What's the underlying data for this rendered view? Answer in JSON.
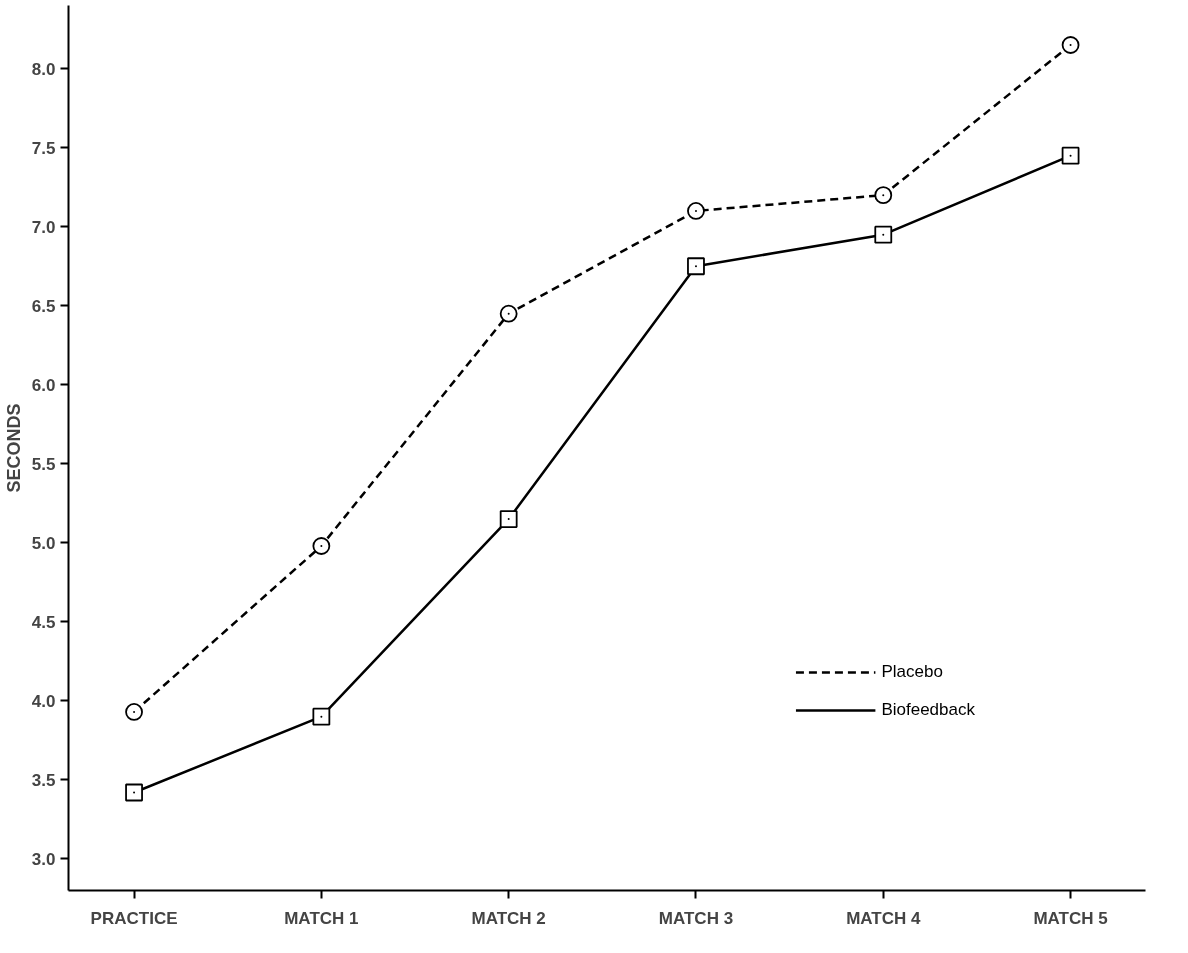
{
  "chart_data": {
    "type": "line",
    "ylabel": "SECONDS",
    "categories": [
      "PRACTICE",
      "MATCH 1",
      "MATCH 2",
      "MATCH 3",
      "MATCH 4",
      "MATCH 5"
    ],
    "series": [
      {
        "name": "Placebo",
        "color": "#000000",
        "marker": "circle",
        "line_style": "dashed",
        "values": [
          3.93,
          4.98,
          6.45,
          7.1,
          7.2,
          8.15
        ]
      },
      {
        "name": "Biofeedback",
        "color": "#000000",
        "marker": "square",
        "line_style": "solid",
        "values": [
          3.42,
          3.9,
          5.15,
          6.75,
          6.95,
          7.45
        ]
      }
    ],
    "ylim": [
      2.8,
      8.4
    ],
    "yticks": [
      {
        "value": 3,
        "label": "3.0"
      },
      3.5,
      {
        "value": 4,
        "label": "4.0"
      },
      4.5,
      {
        "value": 5,
        "label": "5.0"
      },
      5.5,
      {
        "value": 6,
        "label": "6.0"
      },
      6.5,
      {
        "value": 7,
        "label": "7.0"
      },
      7.5,
      {
        "value": 8,
        "label": "8.0"
      }
    ],
    "grid": false,
    "legend": "bottom right"
  }
}
